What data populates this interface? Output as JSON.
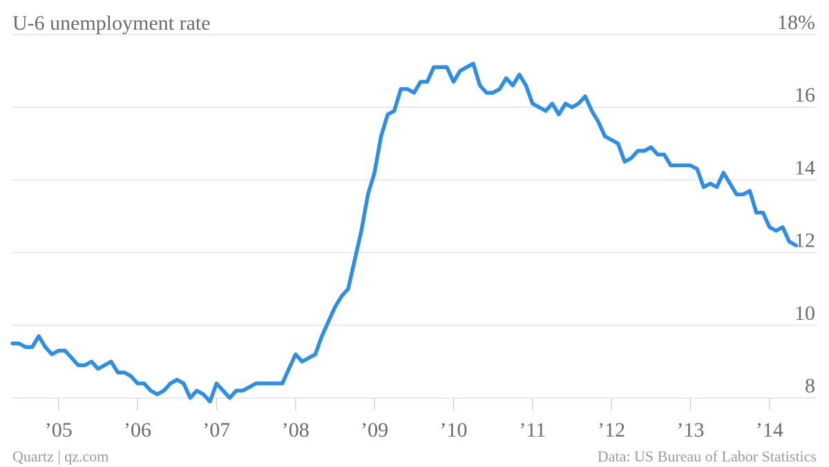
{
  "chart_data": {
    "type": "line",
    "title": "U-6 unemployment rate",
    "xlabel": "",
    "ylabel": "",
    "x_tick_labels": [
      "’05",
      "’06",
      "’07",
      "’08",
      "’09",
      "’10",
      "’11",
      "’12",
      "’13",
      "’14"
    ],
    "y_tick_labels": [
      "8",
      "10",
      "12",
      "14",
      "16",
      "18%"
    ],
    "y_ticks": [
      8,
      10,
      12,
      14,
      16,
      18
    ],
    "ylim": [
      8,
      18
    ],
    "xlim": [
      "2004-06",
      "2014-05"
    ],
    "grid": true,
    "line_color": "#2d8ee6",
    "series": [
      {
        "x": [
          "2004-06",
          "2004-07",
          "2004-08",
          "2004-09",
          "2004-10",
          "2004-11",
          "2004-12",
          "2005-01",
          "2005-02",
          "2005-03",
          "2005-04",
          "2005-05",
          "2005-06",
          "2005-07",
          "2005-08",
          "2005-09",
          "2005-10",
          "2005-11",
          "2005-12",
          "2006-01",
          "2006-02",
          "2006-03",
          "2006-04",
          "2006-05",
          "2006-06",
          "2006-07",
          "2006-08",
          "2006-09",
          "2006-10",
          "2006-11",
          "2006-12",
          "2007-01",
          "2007-02",
          "2007-03",
          "2007-04",
          "2007-05",
          "2007-06",
          "2007-07",
          "2007-08",
          "2007-09",
          "2007-10",
          "2007-11",
          "2007-12",
          "2008-01",
          "2008-02",
          "2008-03",
          "2008-04",
          "2008-05",
          "2008-06",
          "2008-07",
          "2008-08",
          "2008-09",
          "2008-10",
          "2008-11",
          "2008-12",
          "2009-01",
          "2009-02",
          "2009-03",
          "2009-04",
          "2009-05",
          "2009-06",
          "2009-07",
          "2009-08",
          "2009-09",
          "2009-10",
          "2009-11",
          "2009-12",
          "2010-01",
          "2010-02",
          "2010-03",
          "2010-04",
          "2010-05",
          "2010-06",
          "2010-07",
          "2010-08",
          "2010-09",
          "2010-10",
          "2010-11",
          "2010-12",
          "2011-01",
          "2011-02",
          "2011-03",
          "2011-04",
          "2011-05",
          "2011-06",
          "2011-07",
          "2011-08",
          "2011-09",
          "2011-10",
          "2011-11",
          "2011-12",
          "2012-01",
          "2012-02",
          "2012-03",
          "2012-04",
          "2012-05",
          "2012-06",
          "2012-07",
          "2012-08",
          "2012-09",
          "2012-10",
          "2012-11",
          "2012-12",
          "2013-01",
          "2013-02",
          "2013-03",
          "2013-04",
          "2013-05",
          "2013-06",
          "2013-07",
          "2013-08",
          "2013-09",
          "2013-10",
          "2013-11",
          "2013-12",
          "2014-01",
          "2014-02",
          "2014-03",
          "2014-04",
          "2014-05"
        ],
        "values": [
          9.5,
          9.5,
          9.4,
          9.4,
          9.7,
          9.4,
          9.2,
          9.3,
          9.3,
          9.1,
          8.9,
          8.9,
          9.0,
          8.8,
          8.9,
          9.0,
          8.7,
          8.7,
          8.6,
          8.4,
          8.4,
          8.2,
          8.1,
          8.2,
          8.4,
          8.5,
          8.4,
          8.0,
          8.2,
          8.1,
          7.9,
          8.4,
          8.2,
          8.0,
          8.2,
          8.2,
          8.3,
          8.4,
          8.4,
          8.4,
          8.4,
          8.4,
          8.8,
          9.2,
          9.0,
          9.1,
          9.2,
          9.7,
          10.1,
          10.5,
          10.8,
          11.0,
          11.8,
          12.6,
          13.6,
          14.2,
          15.2,
          15.8,
          15.9,
          16.5,
          16.5,
          16.4,
          16.7,
          16.7,
          17.1,
          17.1,
          17.1,
          16.7,
          17.0,
          17.1,
          17.2,
          16.6,
          16.4,
          16.4,
          16.5,
          16.8,
          16.6,
          16.9,
          16.6,
          16.1,
          16.0,
          15.9,
          16.1,
          15.8,
          16.1,
          16.0,
          16.1,
          16.3,
          15.9,
          15.6,
          15.2,
          15.1,
          15.0,
          14.5,
          14.6,
          14.8,
          14.8,
          14.9,
          14.7,
          14.7,
          14.4,
          14.4,
          14.4,
          14.4,
          14.3,
          13.8,
          13.9,
          13.8,
          14.2,
          13.9,
          13.6,
          13.6,
          13.7,
          13.1,
          13.1,
          12.7,
          12.6,
          12.7,
          12.3,
          12.2
        ]
      }
    ],
    "source": "Data: US Bureau of Labor Statistics",
    "credit": "Quartz | qz.com"
  }
}
